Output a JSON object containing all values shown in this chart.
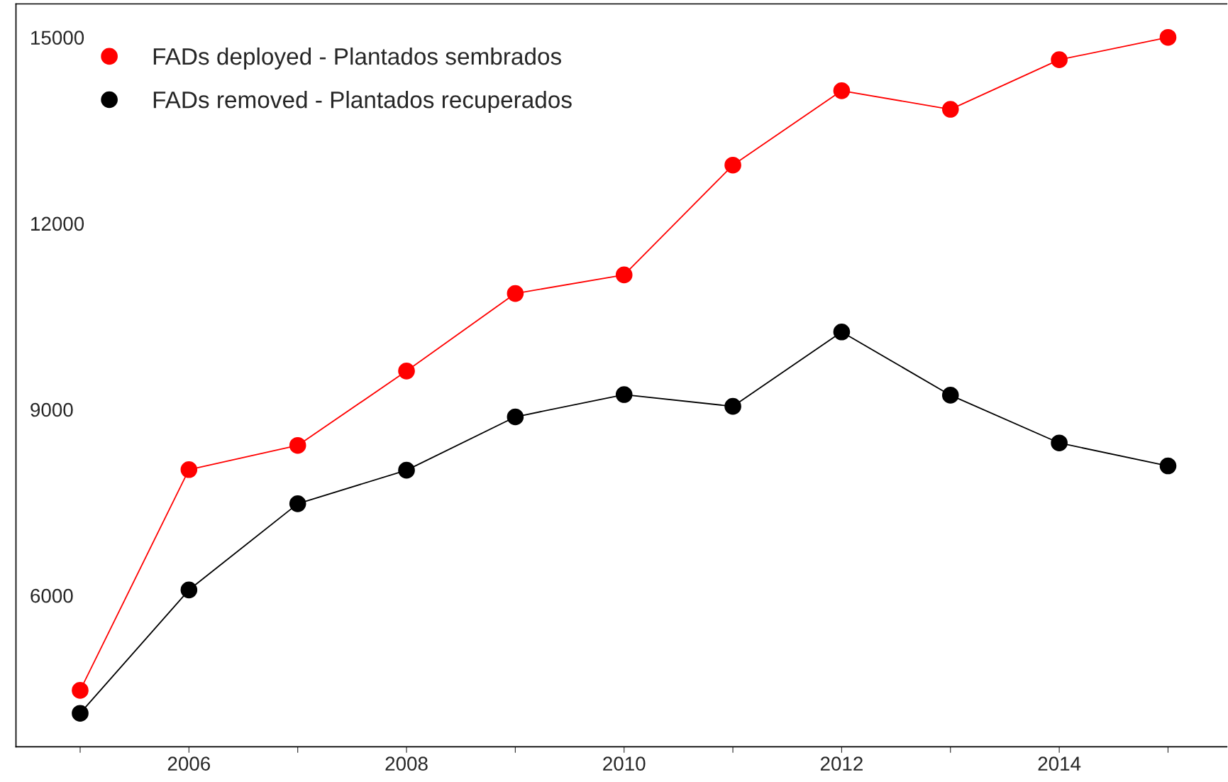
{
  "chart_data": {
    "type": "line",
    "x": [
      2005,
      2006,
      2007,
      2008,
      2009,
      2010,
      2011,
      2012,
      2013,
      2014,
      2015
    ],
    "series": [
      {
        "name": "FADs deployed - Plantados sembrados",
        "color": "#ff0000",
        "values": [
          4470,
          8030,
          8420,
          9620,
          10870,
          11170,
          12940,
          14140,
          13840,
          14640,
          15000
        ]
      },
      {
        "name": "FADs removed - Plantados recuperados",
        "color": "#000000",
        "values": [
          4100,
          6090,
          7480,
          8020,
          8880,
          9240,
          9050,
          10250,
          9230,
          8460,
          8090
        ]
      }
    ],
    "xlim": [
      2004.41,
      2015.54
    ],
    "ylim": [
      3560,
      15540
    ],
    "xticks": [
      {
        "value": 2005,
        "label": null
      },
      2006,
      {
        "value": 2007,
        "label": null
      },
      2008,
      {
        "value": 2009,
        "label": null
      },
      2010,
      {
        "value": 2011,
        "label": null
      },
      2012,
      {
        "value": 2013,
        "label": null
      },
      2014,
      {
        "value": 2015,
        "label": null
      }
    ],
    "yticks": [
      6000,
      9000,
      12000,
      15000
    ],
    "marker": "circle",
    "line_style": "solid",
    "grid": false,
    "legend": "top left"
  }
}
